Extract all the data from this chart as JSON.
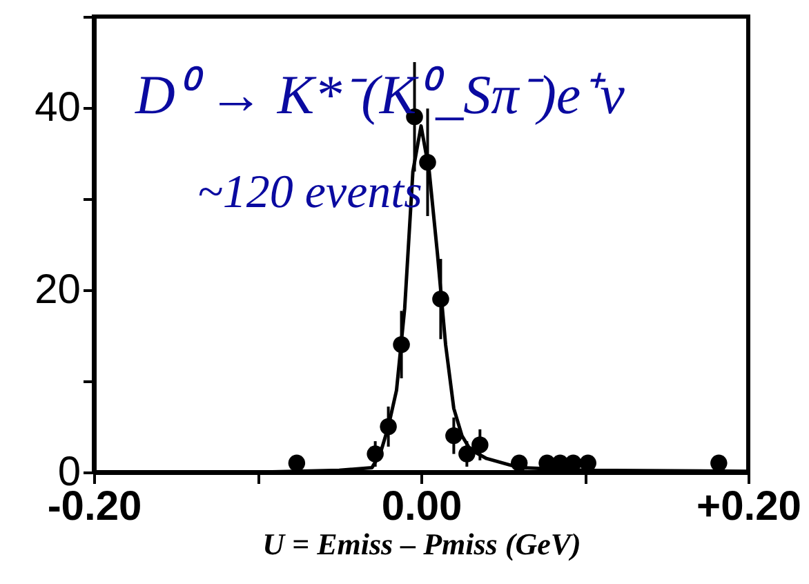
{
  "chart_data": {
    "type": "scatter",
    "xlabel": "U = Emiss – Pmiss (GeV)",
    "annotations": [
      "D⁰ → K*⁻(K⁰_Sπ⁻)e⁺ν",
      "~120 events"
    ],
    "xlim": [
      -0.2,
      0.2
    ],
    "ylim": [
      0,
      50
    ],
    "xticks": [
      {
        "value": -0.2,
        "label": "-0.20"
      },
      {
        "value": -0.1,
        "label": null
      },
      {
        "value": 0,
        "label": "0.00"
      },
      {
        "value": 0.1,
        "label": null
      },
      {
        "value": 0.2,
        "label": "+0.20"
      }
    ],
    "yticks": [
      0,
      {
        "value": 10,
        "label": null
      },
      20,
      {
        "value": 30,
        "label": null
      },
      40,
      {
        "value": 50,
        "label": null
      }
    ],
    "grid": false,
    "marker": "circle",
    "series": [
      {
        "color": "#000000",
        "x": [
          -0.076,
          -0.028,
          -0.02,
          -0.012,
          -0.004,
          0.004,
          0.012,
          0.02,
          0.028,
          0.036,
          0.06,
          0.077,
          0.085,
          0.093,
          0.102,
          0.182
        ],
        "values": [
          1,
          2,
          5,
          14,
          39,
          34,
          19,
          4,
          2,
          3,
          1,
          1,
          1,
          1,
          1,
          1
        ],
        "errors": [
          null,
          1.4,
          2.2,
          3.7,
          6,
          5.9,
          4.4,
          2,
          1.4,
          1.7,
          null,
          null,
          null,
          null,
          null,
          null
        ]
      },
      {
        "type": "line",
        "marker": "none",
        "color": "#000000",
        "x": [
          -0.2,
          -0.1,
          -0.05,
          -0.03,
          -0.025,
          -0.02,
          -0.015,
          -0.01,
          -0.005,
          0,
          0.005,
          0.01,
          0.015,
          0.02,
          0.025,
          0.03,
          0.04,
          0.06,
          0.1,
          0.2
        ],
        "values": [
          0,
          0,
          0.2,
          0.5,
          2,
          5,
          9,
          18,
          33,
          38,
          33,
          24,
          14,
          7,
          4,
          2.5,
          1.5,
          0.5,
          0.2,
          0.1
        ]
      }
    ]
  }
}
